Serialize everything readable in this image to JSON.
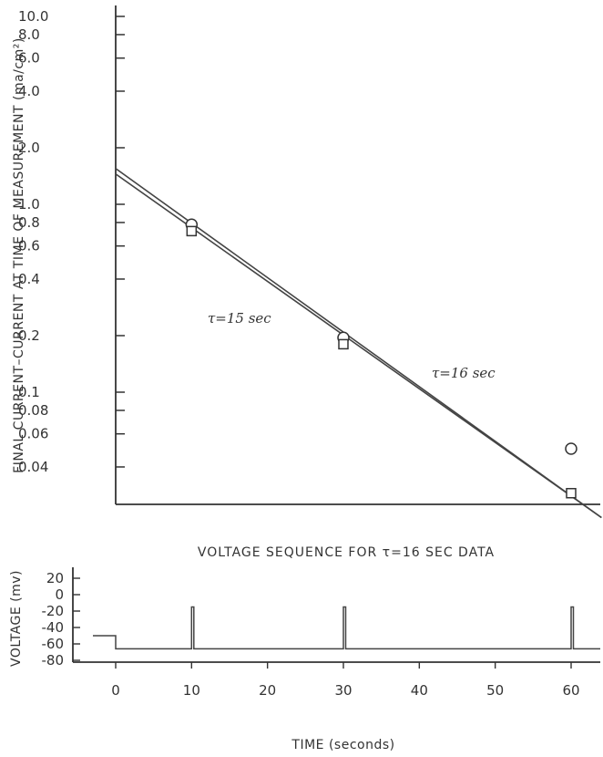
{
  "chart_data": [
    {
      "type": "scatter",
      "title": "",
      "xlabel": "",
      "ylabel": "FINAL CURRENT–CURRENT AT TIME OF MEASUREMENT (ma/cm²)",
      "yscale": "log",
      "ylim": [
        0.025,
        12
      ],
      "xlim": [
        -3,
        64
      ],
      "y_ticks": [
        {
          "value": 10.0,
          "label": "10.0"
        },
        {
          "value": 8.0,
          "label": "8.0"
        },
        {
          "value": 6.0,
          "label": "6.0"
        },
        {
          "value": 4.0,
          "label": "4.0"
        },
        {
          "value": 2.0,
          "label": "2.0"
        },
        {
          "value": 1.0,
          "label": "1.0"
        },
        {
          "value": 0.8,
          "label": "0.8"
        },
        {
          "value": 0.6,
          "label": "0.6"
        },
        {
          "value": 0.4,
          "label": "0.4"
        },
        {
          "value": 0.2,
          "label": "0.2"
        },
        {
          "value": 0.1,
          "label": "0.1"
        },
        {
          "value": 0.08,
          "label": "0.08"
        },
        {
          "value": 0.06,
          "label": "0.06"
        },
        {
          "value": 0.04,
          "label": "0.04"
        }
      ],
      "series": [
        {
          "marker": "circle",
          "x": [
            10,
            30,
            60
          ],
          "y": [
            0.78,
            0.195,
            0.05
          ]
        },
        {
          "marker": "square",
          "x": [
            10,
            30,
            60
          ],
          "y": [
            0.72,
            0.18,
            0.029
          ]
        }
      ],
      "fit_lines": [
        {
          "label": "τ=15 sec",
          "x": [
            0,
            64
          ],
          "y": [
            1.45,
            0.0215
          ]
        },
        {
          "label": "τ=16 sec",
          "x": [
            0,
            64
          ],
          "y": [
            1.55,
            0.0215
          ]
        }
      ],
      "annotations": [
        "τ=15 sec",
        "τ=16 sec"
      ],
      "grid": false
    },
    {
      "type": "line",
      "title": "VOLTAGE SEQUENCE FOR τ=16 SEC DATA",
      "xlabel": "TIME (seconds)",
      "ylabel": "VOLTAGE (mv)",
      "xlim": [
        -3,
        64
      ],
      "ylim": [
        -90,
        25
      ],
      "x_ticks": [
        0,
        10,
        20,
        30,
        40,
        50,
        60
      ],
      "y_ticks": [
        20,
        0,
        -20,
        -40,
        -60,
        -80
      ],
      "x_tick_labels": [
        "0",
        "10",
        "20",
        "30",
        "40",
        "50",
        "60"
      ],
      "y_tick_labels": [
        "20",
        "0",
        "-20",
        "-40",
        "-60",
        "-80"
      ],
      "series": [
        {
          "x": [
            -3,
            0,
            0,
            10,
            10,
            10.3,
            10.3,
            30,
            30,
            30.3,
            30.3,
            60,
            60,
            60.3,
            60.3,
            64
          ],
          "y": [
            -50,
            -50,
            -66,
            -66,
            -15,
            -15,
            -66,
            -66,
            -15,
            -15,
            -66,
            -66,
            -15,
            -15,
            -66,
            -66
          ]
        }
      ],
      "grid": false
    }
  ]
}
